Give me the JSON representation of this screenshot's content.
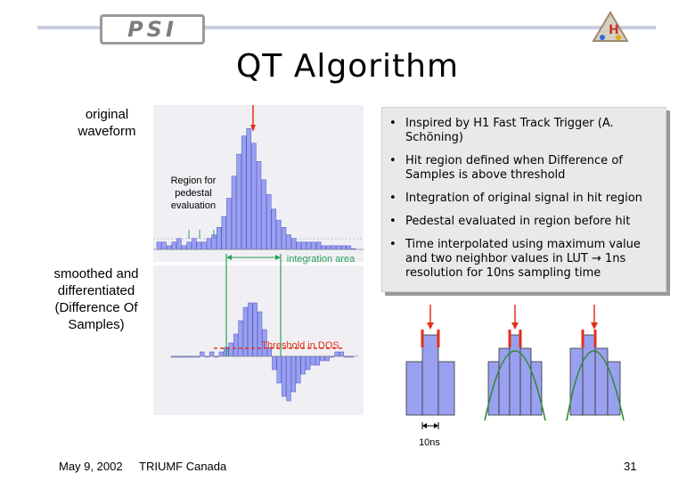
{
  "header": {
    "logo_text": "PSI",
    "title": "QT Algorithm"
  },
  "labels": {
    "original": "original\nwaveform",
    "smoothed": "smoothed and\ndifferentiated\n(Difference Of\nSamples)",
    "pedestal": "Region for\npedestal\nevaluation",
    "integration": "integration area",
    "threshold": "Threshold in DOS",
    "tenns": "10ns"
  },
  "bullets": [
    "Inspired by H1 Fast Track Trigger (A. Schöning)",
    "Hit region defined when Difference of Samples is above threshold",
    "Integration of original signal in hit region",
    "Pedestal evaluated in region before hit",
    "Time interpolated using maximum value and two neighbor values in LUT → 1ns resolution for 10ns sampling time"
  ],
  "footer": {
    "date": "May 9, 2002",
    "venue": "TRIUMF Canada",
    "page": "31"
  },
  "colors": {
    "bar": "#9aa0f0",
    "bar_edge": "#4d55c8",
    "accent_red": "#e2301a",
    "fit_green": "#2e8b2e",
    "marker_green": "#2aa05a"
  },
  "chart_data": [
    {
      "type": "bar",
      "name_printed": "",
      "values": [
        2,
        2,
        1,
        2,
        3,
        1,
        2,
        3,
        2,
        2,
        3,
        4,
        6,
        9,
        14,
        20,
        26,
        31,
        33,
        29,
        24,
        19,
        15,
        11,
        8,
        6,
        4,
        3,
        2,
        2,
        2,
        2,
        2,
        1,
        1,
        1,
        1,
        1,
        1,
        0
      ],
      "ylim": [
        0,
        36
      ]
    },
    {
      "type": "bar",
      "values": [
        0,
        0,
        0,
        0,
        0,
        0,
        1,
        0,
        1,
        0,
        1,
        2,
        3,
        5,
        8,
        11,
        12,
        12,
        10,
        6,
        2,
        -3,
        -6,
        -9,
        -10,
        -8,
        -6,
        -4,
        -3,
        -2,
        -2,
        -1,
        -1,
        0,
        1,
        1,
        0,
        0
      ],
      "ylim": [
        -12,
        14
      ]
    },
    {
      "type": "bar",
      "values": [
        60,
        90,
        60
      ],
      "ylim": [
        0,
        100
      ]
    },
    {
      "type": "bar",
      "values": [
        60,
        75,
        90,
        75,
        60
      ],
      "ylim": [
        0,
        100
      ]
    },
    {
      "type": "bar",
      "values": [
        75,
        90,
        75,
        60
      ],
      "ylim": [
        0,
        100
      ]
    }
  ]
}
